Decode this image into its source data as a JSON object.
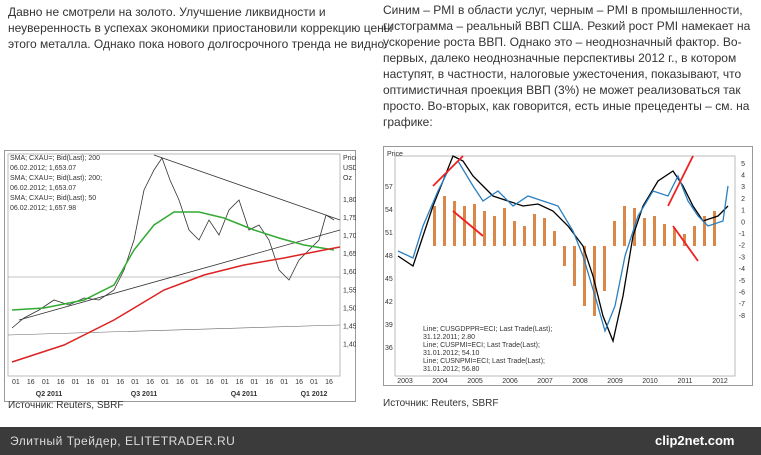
{
  "left": {
    "lines": [
      "Давно не смотрели на золото. Улучшение ликвидности и",
      "неуверенность в успехах экономики приостановили коррекцию цены",
      "этого металла. Однако пока нового долгосрочного тренда не видно."
    ],
    "chart": {
      "legend": [
        "SMA; CXAU=; Bid(Last); 200",
        "06.02.2012; 1,653.07",
        "SMA; CXAU=; Bid(Last); 200;",
        "06.02.2012; 1,653.07",
        "SMA; CXAU=; Bid(Last); 50",
        "06.02.2012; 1,657.98"
      ],
      "axis_title": [
        "Price",
        "USD",
        "Oz"
      ],
      "yticks": [
        "1,800",
        "1,750",
        "1,700",
        "1,650",
        "1,600",
        "1,550",
        "1,500",
        "1,450",
        "1,400"
      ],
      "xticks": [
        "01",
        "16",
        "01",
        "16",
        "01",
        "16",
        "01",
        "16",
        "01",
        "16",
        "01",
        "16",
        "01",
        "16",
        "01",
        "16",
        "01",
        "16",
        "01",
        "16",
        "01",
        "16"
      ],
      "periods": [
        "Q2 2011",
        "Q3 2011",
        "Q4 2011",
        "Q1 2012"
      ]
    },
    "source": "Источник: Reuters, SBRF"
  },
  "right": {
    "lines": [
      "Синим – PMI в области услуг, черным – PMI в промышленности,",
      "гистограмма – реальный ВВП США. Резкий рост PMI намекает на",
      "ускорение роста ВВП. Однако это – неоднозначный фактор. Во-",
      "первых, далеко неоднозначные перспективы 2012 г., в котором",
      "наступят, в частности, налоговые ужесточения, показывают, что",
      "оптимистичная проекция ВВП (3%) не может реализоваться так",
      "просто. Во-вторых, как говорится, есть иные прецеденты – см. на",
      "графике:"
    ],
    "chart": {
      "axis_title": "Price",
      "yticks": [
        "57",
        "54",
        "51",
        "48",
        "45",
        "42",
        "39",
        "36"
      ],
      "y2ticks": [
        "5",
        "4",
        "3",
        "2",
        "1",
        "0",
        "-1",
        "-2",
        "-3",
        "-4",
        "-5",
        "-6",
        "-7",
        "-8"
      ],
      "legend": [
        "Line; CUSGDPPR=ECI; Last Trade(Last);",
        "31.12.2011; 2.80",
        "Line; CUSPMI=ECI; Last Trade(Last);",
        "31.01.2012; 54.10",
        "Line; CUSNPMI=ECI; Last Trade(Last);",
        "31.01.2012; 56.80"
      ],
      "xticks": [
        "2003",
        "2004",
        "2005",
        "2006",
        "2007",
        "2008",
        "2009",
        "2010",
        "2011",
        "2012"
      ],
      "decades": [
        "2000",
        "2010"
      ]
    },
    "source": "Источник: Reuters, SBRF"
  },
  "footer": {
    "site": "Элитный Трейдер, ELITETRADER.RU",
    "logo": "clip2net.com"
  }
}
